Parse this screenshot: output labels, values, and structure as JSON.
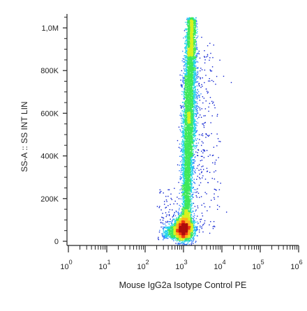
{
  "chart_data": {
    "type": "scatter",
    "xlabel": "Mouse IgG2a Isotype Control PE",
    "ylabel": "SS-A :: SS INT LIN",
    "x_scale": "log",
    "y_scale": "linear",
    "xlim": [
      1,
      1000000
    ],
    "ylim": [
      0,
      1050000
    ],
    "x_ticks": [
      {
        "value": 1,
        "base": "10",
        "exp": "0"
      },
      {
        "value": 10,
        "base": "10",
        "exp": "1"
      },
      {
        "value": 100,
        "base": "10",
        "exp": "2"
      },
      {
        "value": 1000,
        "base": "10",
        "exp": "3"
      },
      {
        "value": 10000,
        "base": "10",
        "exp": "4"
      },
      {
        "value": 100000,
        "base": "10",
        "exp": "5"
      },
      {
        "value": 1000000,
        "base": "10",
        "exp": "6"
      }
    ],
    "y_ticks": [
      {
        "value": 0,
        "label": "0"
      },
      {
        "value": 200000,
        "label": "200K"
      },
      {
        "value": 400000,
        "label": "400K"
      },
      {
        "value": 600000,
        "label": "600K"
      },
      {
        "value": 800000,
        "label": "800K"
      },
      {
        "value": 1000000,
        "label": "1,0M"
      }
    ],
    "populations": [
      {
        "name": "",
        "x_center_log10": 3.0,
        "x_spread_log10": 0.13,
        "y_center": 60000,
        "y_spread": 28000,
        "count": 2600,
        "density_peak": "high"
      },
      {
        "name": "",
        "x_center_log10": 3.15,
        "x_spread_log10": 0.1,
        "y_range": [
          100000,
          1050000
        ],
        "count": 6500,
        "density_peak": "medium"
      }
    ],
    "colormap": [
      "#0b1fd0",
      "#2f7cff",
      "#22d3e8",
      "#3ee85a",
      "#d8f21f",
      "#ffb21a",
      "#f03a12",
      "#b00d0d"
    ],
    "grid": false
  }
}
